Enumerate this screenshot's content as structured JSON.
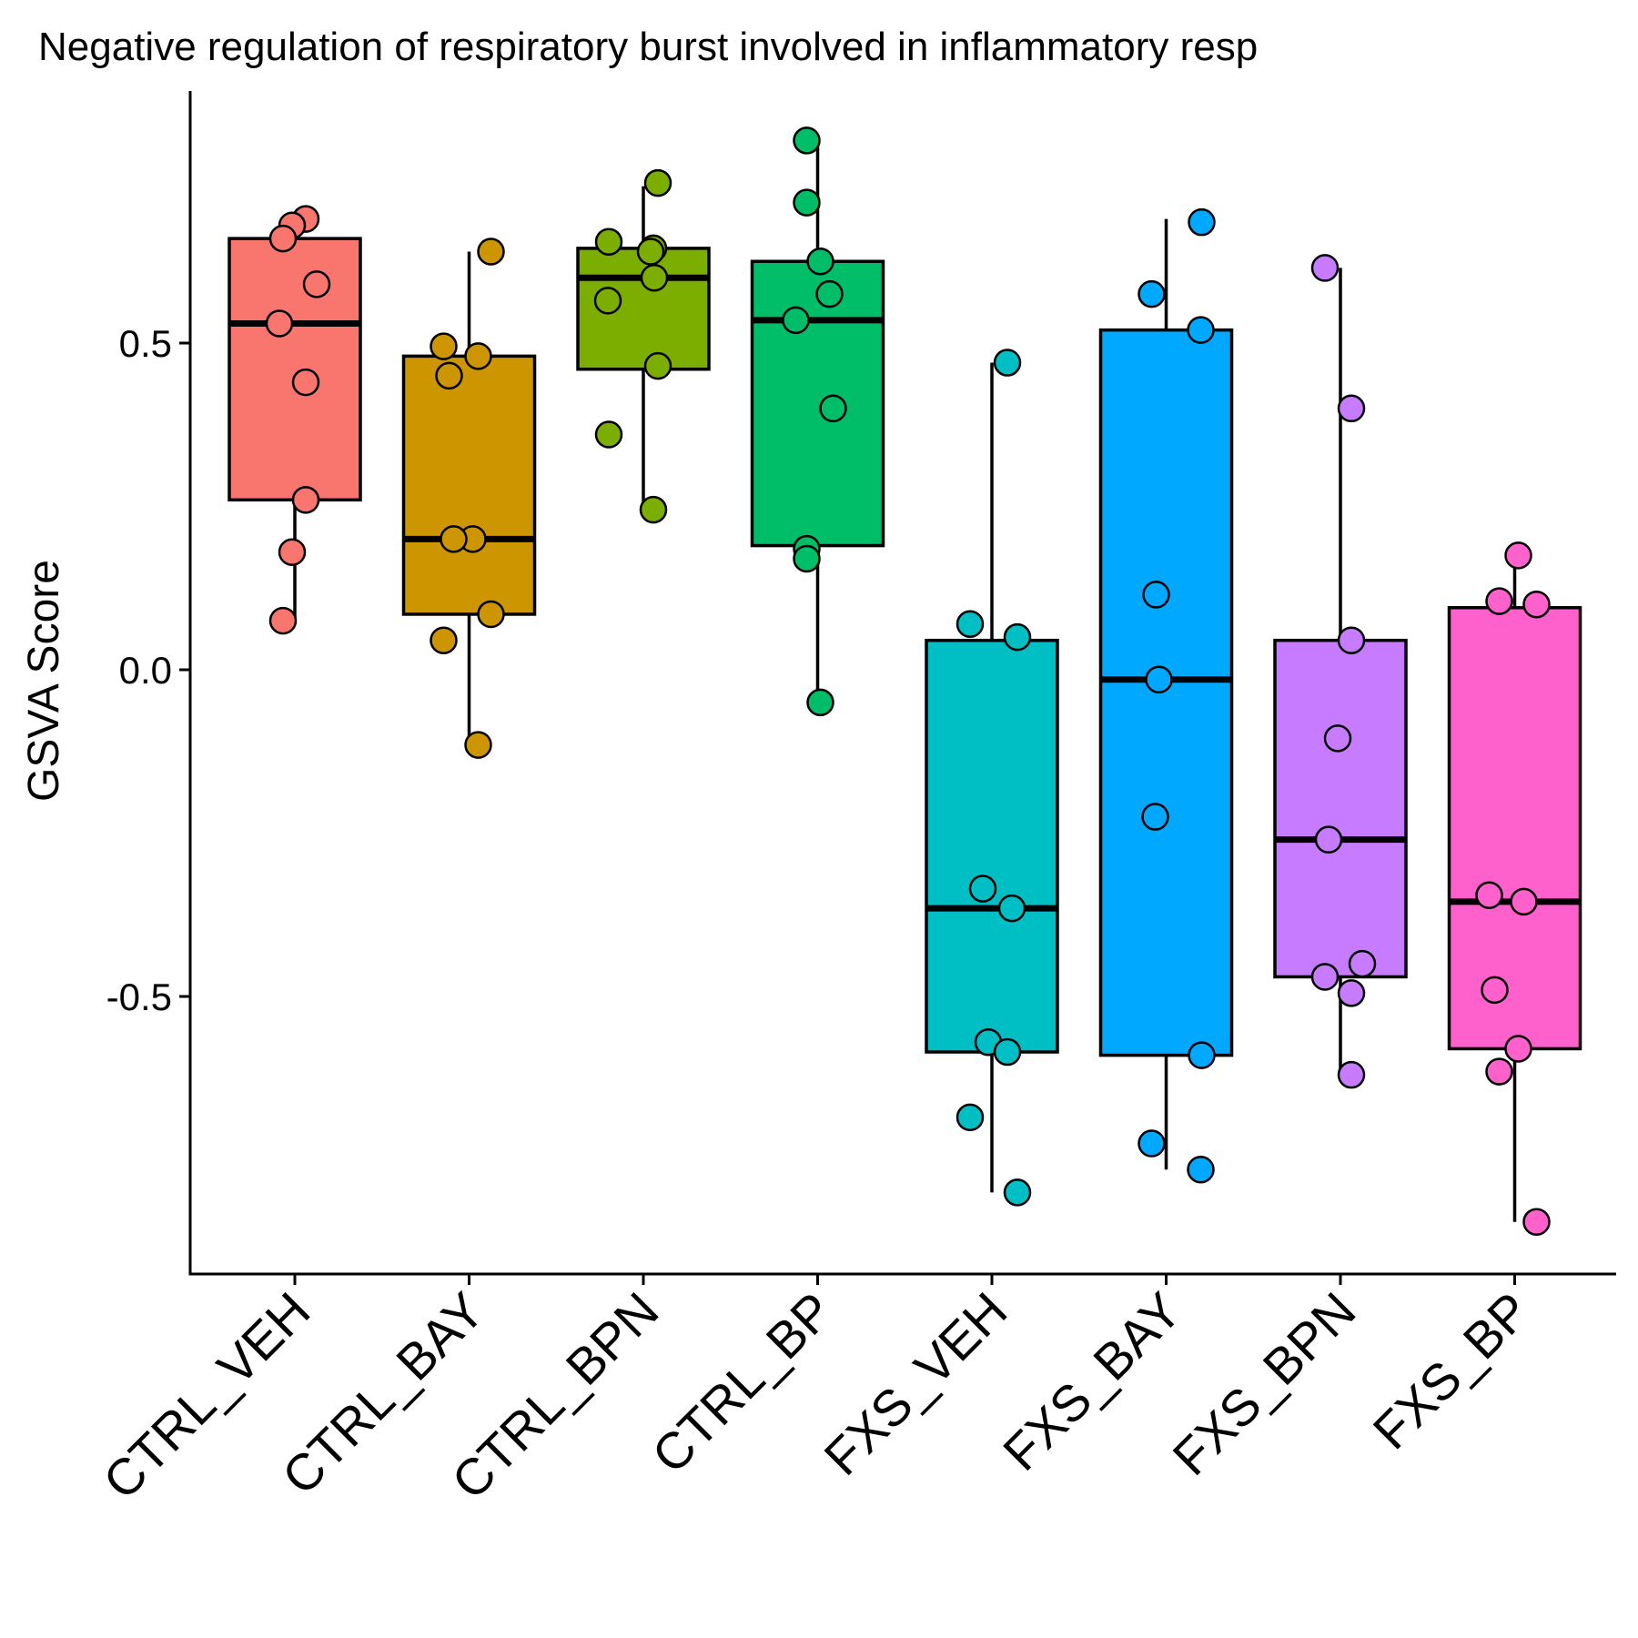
{
  "chart_data": {
    "type": "box",
    "title": "Negative regulation of respiratory burst involved in inflammatory resp",
    "ylabel": "GSVA Score",
    "xlabel": "",
    "ylim": [
      -0.925,
      0.895
    ],
    "yticks": [
      {
        "value": 0.5,
        "label": "0.5"
      },
      {
        "value": 0.0,
        "label": "0.0"
      },
      {
        "value": -0.5,
        "label": "-0.5"
      }
    ],
    "legend": "none",
    "grid": false,
    "categories": [
      "CTRL_VEH",
      "CTRL_BAY",
      "CTRL_BPN",
      "CTRL_BP",
      "FXS_VEH",
      "FXS_BAY",
      "FXS_BPN",
      "FXS_BP"
    ],
    "colors": [
      "#F8766D",
      "#CD9600",
      "#7CAE00",
      "#00BE67",
      "#00BFC4",
      "#00A9FF",
      "#C77CFF",
      "#FF61CC"
    ],
    "boxes": [
      {
        "q1": 0.26,
        "median": 0.53,
        "q3": 0.66,
        "whisker_low": 0.075,
        "whisker_high": 0.66,
        "points": [
          0.69,
          0.68,
          0.66,
          0.59,
          0.53,
          0.44,
          0.26,
          0.18,
          0.075
        ]
      },
      {
        "q1": 0.085,
        "median": 0.2,
        "q3": 0.48,
        "whisker_low": -0.115,
        "whisker_high": 0.64,
        "points": [
          0.64,
          0.495,
          0.48,
          0.45,
          0.2,
          0.2,
          0.085,
          0.045,
          -0.115
        ]
      },
      {
        "q1": 0.46,
        "median": 0.6,
        "q3": 0.645,
        "whisker_low": 0.245,
        "whisker_high": 0.74,
        "points": [
          0.745,
          0.655,
          0.645,
          0.64,
          0.6,
          0.565,
          0.465,
          0.36,
          0.245
        ]
      },
      {
        "q1": 0.19,
        "median": 0.535,
        "q3": 0.625,
        "whisker_low": -0.05,
        "whisker_high": 0.805,
        "points": [
          0.81,
          0.715,
          0.625,
          0.575,
          0.535,
          0.4,
          0.185,
          0.17,
          -0.05
        ]
      },
      {
        "q1": -0.585,
        "median": -0.365,
        "q3": 0.045,
        "whisker_low": -0.8,
        "whisker_high": 0.47,
        "points": [
          0.47,
          0.07,
          0.05,
          -0.335,
          -0.365,
          -0.57,
          -0.585,
          -0.685,
          -0.8
        ]
      },
      {
        "q1": -0.59,
        "median": -0.015,
        "q3": 0.52,
        "whisker_low": -0.765,
        "whisker_high": 0.69,
        "points": [
          0.685,
          0.575,
          0.52,
          0.115,
          -0.015,
          -0.225,
          -0.59,
          -0.725,
          -0.765
        ]
      },
      {
        "q1": -0.47,
        "median": -0.26,
        "q3": 0.045,
        "whisker_low": -0.62,
        "whisker_high": 0.615,
        "points": [
          0.615,
          0.4,
          0.045,
          -0.105,
          -0.26,
          -0.45,
          -0.47,
          -0.495,
          -0.62
        ]
      },
      {
        "q1": -0.58,
        "median": -0.355,
        "q3": 0.095,
        "whisker_low": -0.845,
        "whisker_high": 0.17,
        "points": [
          0.175,
          0.105,
          0.1,
          -0.345,
          -0.355,
          -0.49,
          -0.58,
          -0.615,
          -0.845
        ]
      }
    ]
  }
}
